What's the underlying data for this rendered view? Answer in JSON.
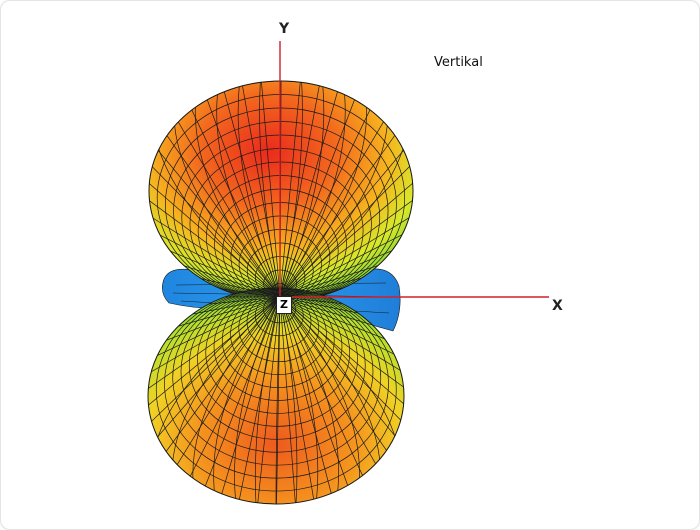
{
  "diagram": {
    "title": "Vertikal",
    "axes": {
      "x": "X",
      "y": "Y",
      "z": "Z"
    },
    "colors": {
      "axis": "#d0202a",
      "mesh": "#1a1a1a",
      "hot": "#e8301e",
      "warm": "#f5a21e",
      "mid": "#e6ea24",
      "cool": "#58d030",
      "cold": "#2a8ee6"
    }
  }
}
